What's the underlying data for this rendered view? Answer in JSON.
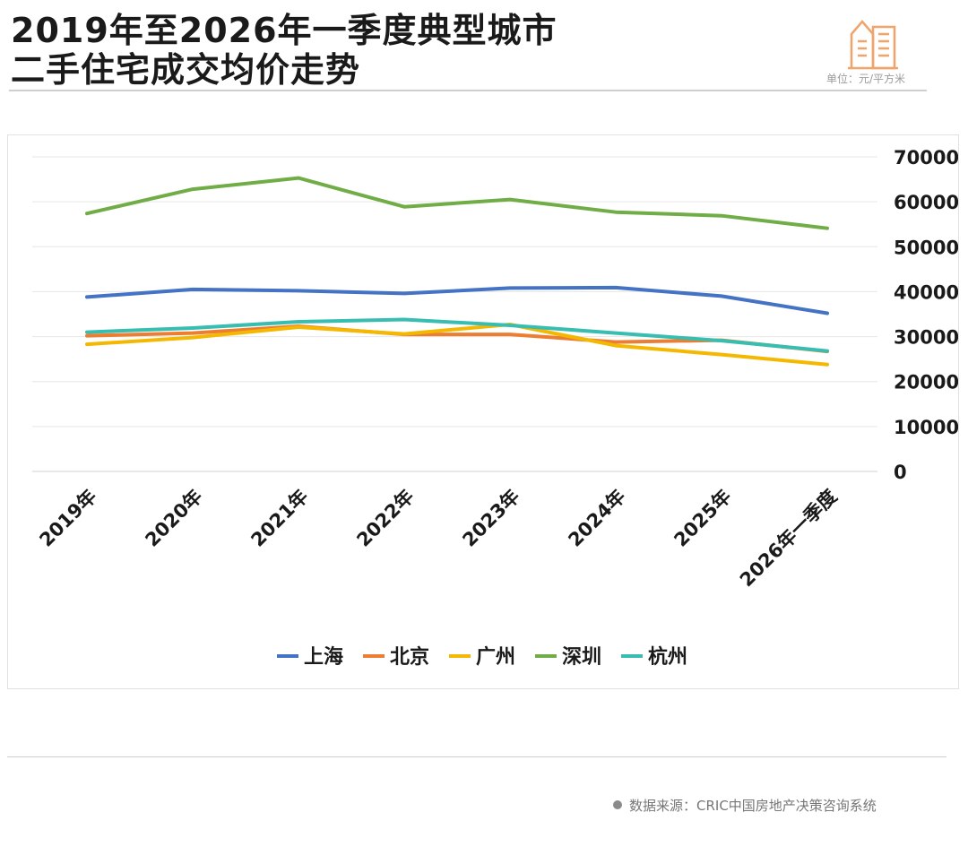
{
  "header": {
    "title_line1": "2019年至2026年一季度典型城市",
    "title_line2": "二手住宅成交均价走势",
    "unit_label": "单位：元/平方米",
    "logo_icon": "buildings-icon",
    "logo_color": "#f0a46a"
  },
  "footer": {
    "source_text": "数据来源：CRIC中国房地产决策咨询系统"
  },
  "chart_data": {
    "type": "line",
    "title": "2019年至2026年一季度典型城市二手住宅成交均价走势",
    "ylabel": "单位：元/平方米",
    "xlabel": "",
    "ylim": [
      0,
      70000
    ],
    "yticks": [
      "0",
      "10000",
      "20000",
      "30000",
      "40000",
      "50000",
      "60000",
      "70000"
    ],
    "y_axis_position": "right",
    "grid": true,
    "legend_position": "bottom",
    "categories": [
      "2019年",
      "2020年",
      "2021年",
      "2022年",
      "2023年",
      "2024年",
      "2025年",
      "2026年一季度"
    ],
    "series": [
      {
        "name": "上海",
        "color": "#4472c4",
        "values": [
          38800,
          40500,
          40200,
          39600,
          40800,
          40900,
          39000,
          35200
        ]
      },
      {
        "name": "北京",
        "color": "#ed7d31",
        "values": [
          30200,
          30800,
          32300,
          30500,
          30500,
          28800,
          29200,
          26700
        ]
      },
      {
        "name": "广州",
        "color": "#f5b800",
        "values": [
          28300,
          29800,
          32100,
          30600,
          32700,
          28000,
          26000,
          23800
        ]
      },
      {
        "name": "深圳",
        "color": "#70ad47",
        "values": [
          57400,
          62800,
          65300,
          58900,
          60500,
          57700,
          56900,
          54100
        ]
      },
      {
        "name": "杭州",
        "color": "#38bdb1",
        "values": [
          31000,
          31900,
          33300,
          33800,
          32500,
          30800,
          29100,
          26800
        ]
      }
    ]
  }
}
